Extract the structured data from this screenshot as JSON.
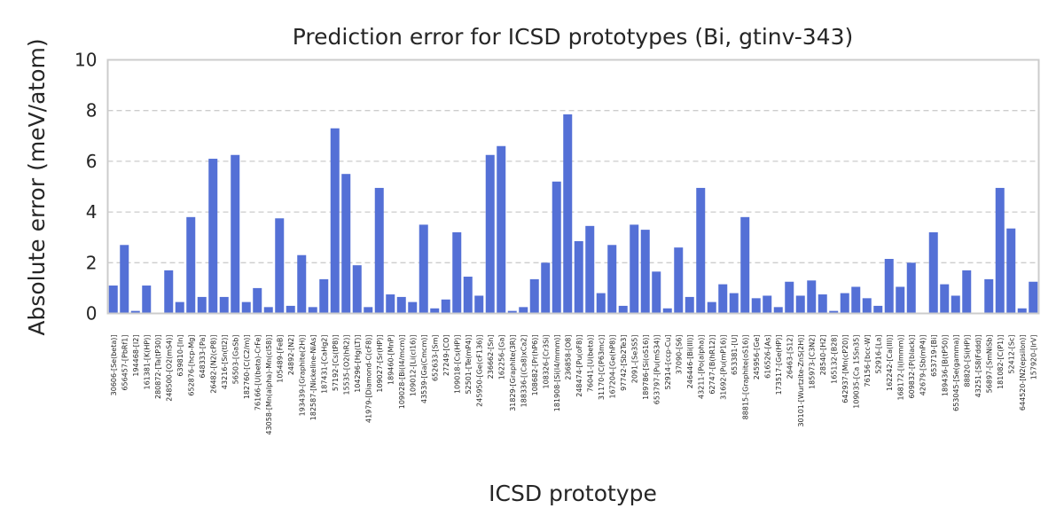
{
  "chart_data": {
    "type": "bar",
    "title": "Prediction error for ICSD prototypes (Bi, gtinv-343)",
    "xlabel": "ICSD prototype",
    "ylabel": "Absolute error (meV/atom)",
    "ylim": [
      0,
      10
    ],
    "yticks": [
      0,
      2,
      4,
      6,
      8,
      10
    ],
    "grid": "y-dashed",
    "color": "#5470d6",
    "categories": [
      "30606-[Se(beta)]",
      "656457-[PbRf1]",
      "194468-[I2]",
      "161381-[K(HP)]",
      "280872-[Ta(tP30)]",
      "248500-[O2(mS4)]",
      "639810-[In]",
      "652876-[hcp-Mg]",
      "648333-[Pa]",
      "26482-[N2(cP8)]",
      "43216-[Sn(tI2)]",
      "56503-[GaSb]",
      "182760-[C(C2/m)]",
      "76166-[U(beta)-CrFe]",
      "43058-[Mn(alpha)-Mn(cI58)]",
      "105489-[FeB]",
      "24892-[N2]",
      "193439-[Graphite(2H)]",
      "182587-[Nickeline-NiAs]",
      "187431-[CaHg2]",
      "57192-[Cs(tP8)]",
      "15535-[O2(hR2)]",
      "104296-[Hg(LT)]",
      "41979-[Diamond-C(cF8)]",
      "109027-[Sr(HP)]",
      "189460-[MnP]",
      "109028-[Bi(I4/mcm)]",
      "109012-[Li(cI16)]",
      "43539-[Ga(Cmcm)]",
      "652633-[Sm]",
      "27249-[CO]",
      "109018-[Cs(HP)]",
      "52501-[Te(mP4)]",
      "245950-[Ge(cF136)]",
      "236662-[Sn]",
      "162256-[Ga]",
      "31829-[Graphite(3R)]",
      "188336-[(Ca8)xCa2]",
      "108682-[Pr(hP6)]",
      "108326-[Cr3Si]",
      "181908-[Si(I4/mmm)]",
      "236858-[O8]",
      "248474-[Pu(oF8)]",
      "76041-[U(beta)]",
      "31170-[C(P63mc)]",
      "167204-[Ge(hP8)]",
      "97742-[Sb2Te3]",
      "2091-[Se3S5]",
      "189786-[Si(oS16)]",
      "653797-[Pu(mS34)]",
      "52914-[ccp-Cu]",
      "37090-[S6]",
      "246446-[Bi(III)]",
      "43211-[Po(alpha)]",
      "62747-[B(hR12)]",
      "31692-[Pu(mP16)]",
      "653381-[U]",
      "88815-[Graphite(oS16)]",
      "245956-[Ge]",
      "616526-[As]",
      "173517-[Ge(HP)]",
      "26463-[S12]",
      "30101-[Wurtzite-ZnS(2H)]",
      "185973-[C3N2]",
      "28540-[H2]",
      "165132-[B28]",
      "642937-[Mn(cP20)]",
      "109035-[Ca 15Sn35]",
      "76156-[bcc-W]",
      "52916-[La]",
      "162242-[Ca(III)]",
      "168172-[I(Immm)]",
      "609832-[P(black)]",
      "42679-[Sb(mP4)]",
      "653719-[Bi]",
      "189436-[B(tP50)]",
      "653045-[Se(gamma)]",
      "88820-[Si(HP)]",
      "43251-[S8(Fddd)]",
      "56897-[SmNiSb]",
      "181082-[C(P1)]",
      "52412-[Sc]",
      "644520-[N2(epsilon)]",
      "157920-[IrV]"
    ],
    "values": [
      1.1,
      2.7,
      0.1,
      1.1,
      0.0,
      1.7,
      0.45,
      3.8,
      0.65,
      6.1,
      0.65,
      6.25,
      0.45,
      1.0,
      0.25,
      3.75,
      0.3,
      2.3,
      0.25,
      1.35,
      7.3,
      5.5,
      1.9,
      0.25,
      4.95,
      0.75,
      0.65,
      0.45,
      3.5,
      0.2,
      0.55,
      3.2,
      1.45,
      0.7,
      6.25,
      6.6,
      0.1,
      0.25,
      1.35,
      2.0,
      5.2,
      7.85,
      2.85,
      3.45,
      0.8,
      2.7,
      0.3,
      3.5,
      3.3,
      1.65,
      0.2,
      2.6,
      0.65,
      4.95,
      0.45,
      1.15,
      0.8,
      3.8,
      0.6,
      0.7,
      0.25,
      1.25,
      0.7,
      1.3,
      0.75,
      0.1,
      0.8,
      1.05,
      0.6,
      0.3,
      2.15,
      1.05,
      2.0,
      0.0,
      3.2,
      1.15,
      0.7,
      1.7,
      0.0,
      1.35,
      4.95,
      3.35,
      0.2,
      1.25
    ]
  }
}
